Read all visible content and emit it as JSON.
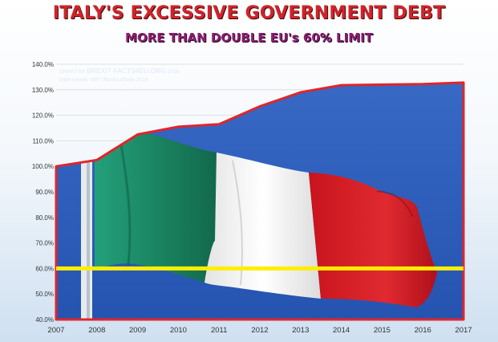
{
  "header": {
    "title": "ITALY'S EXCESSIVE GOVERNMENT DEBT",
    "subtitle": "MORE THAN DOUBLE EU's 60% LIMIT"
  },
  "credits": {
    "chart_by_prefix": "CHART BY",
    "chart_by_brand": "BREXIT FACTS4EU.ORG",
    "chart_by_year": "2018",
    "data_source": "Data source: IMF / Banca d'Italia 2018"
  },
  "colors": {
    "series_line": "#e0252b",
    "limit_line": "#ffee00",
    "sky": "#2f5fbf",
    "flag_green": "#1e8a64",
    "flag_white": "#f2f2f2",
    "flag_red": "#d61f26"
  },
  "chart_data": {
    "type": "area",
    "x": [
      2007,
      2008,
      2009,
      2010,
      2011,
      2012,
      2013,
      2014,
      2015,
      2016,
      2017
    ],
    "series": [
      {
        "values": [
          100.0,
          102.5,
          112.5,
          115.5,
          116.5,
          123.5,
          129.0,
          131.8,
          132.0,
          132.2,
          132.8
        ]
      }
    ],
    "reference_line": {
      "value": 60.0
    },
    "ylim": [
      40,
      140
    ],
    "yticks": [
      "40.0%",
      "50.0%",
      "60.0%",
      "70.0%",
      "80.0%",
      "90.0%",
      "100.0%",
      "110.0%",
      "120.0%",
      "130.0%",
      "140.0%"
    ],
    "xticks": [
      "2007",
      "2008",
      "2009",
      "2010",
      "2011",
      "2012",
      "2013",
      "2014",
      "2015",
      "2016",
      "2017"
    ],
    "grid": true,
    "fill_image": "italian flag on flagpole against blue sky"
  }
}
